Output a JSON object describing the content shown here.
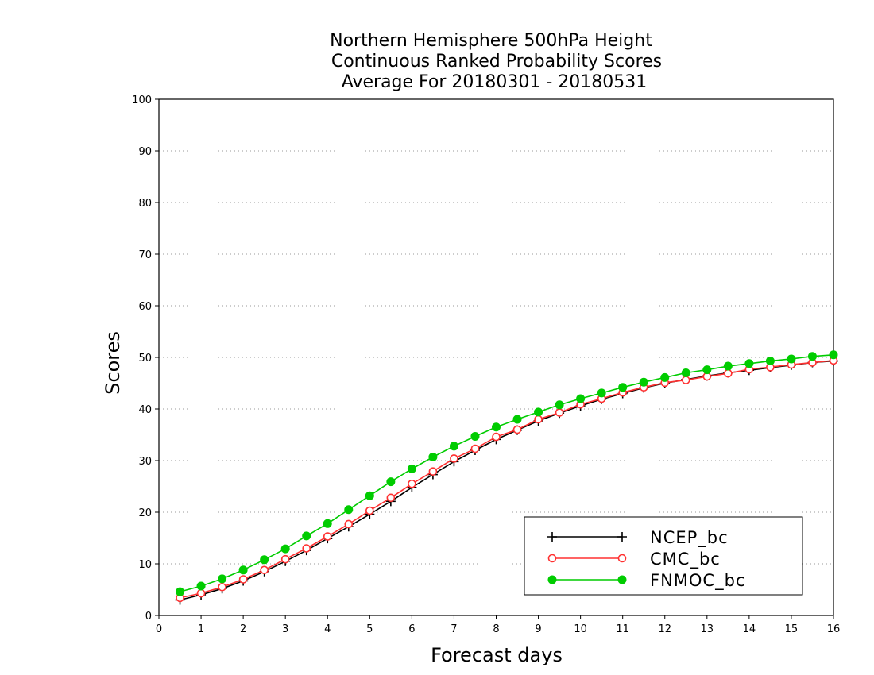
{
  "chart_data": {
    "type": "line",
    "title": [
      "Northern Hemisphere 500hPa Height",
      "Continuous Ranked Probability Scores",
      "Average For 20180301 - 20180531"
    ],
    "xlabel": "Forecast days",
    "ylabel": "Scores",
    "xlim": [
      0,
      16
    ],
    "ylim": [
      0,
      100
    ],
    "xticks": [
      "0",
      "1",
      "2",
      "3",
      "4",
      "5",
      "6",
      "7",
      "8",
      "9",
      "10",
      "11",
      "12",
      "13",
      "14",
      "15",
      "16"
    ],
    "yticks": [
      "0",
      "10",
      "20",
      "30",
      "40",
      "50",
      "60",
      "70",
      "80",
      "90",
      "100"
    ],
    "grid": "horizontal dotted",
    "legend_position": "bottom-right",
    "x": [
      0.5,
      1.0,
      1.5,
      2.0,
      2.5,
      3.0,
      3.5,
      4.0,
      4.5,
      5.0,
      5.5,
      6.0,
      6.5,
      7.0,
      7.5,
      8.0,
      8.5,
      9.0,
      9.5,
      10.0,
      10.5,
      11.0,
      11.5,
      12.0,
      12.5,
      13.0,
      13.5,
      14.0,
      14.5,
      15.0,
      15.5,
      16.0
    ],
    "series": [
      {
        "name": "NCEP_bc",
        "color": "#000000",
        "marker": "plus",
        "values": [
          3.0,
          4.0,
          5.2,
          6.7,
          8.5,
          10.5,
          12.6,
          14.9,
          17.2,
          19.6,
          22.1,
          24.8,
          27.3,
          29.8,
          32.0,
          34.1,
          35.9,
          37.7,
          39.2,
          40.6,
          41.9,
          43.0,
          44.1,
          45.0,
          45.7,
          46.4,
          47.0,
          47.5,
          48.0,
          48.5,
          49.0,
          49.3
        ]
      },
      {
        "name": "CMC_bc",
        "color": "#ff3030",
        "marker": "open-circle",
        "values": [
          3.4,
          4.3,
          5.5,
          7.0,
          8.8,
          10.9,
          13.0,
          15.3,
          17.7,
          20.3,
          22.8,
          25.5,
          27.9,
          30.4,
          32.3,
          34.6,
          36.0,
          38.0,
          39.3,
          40.9,
          42.0,
          43.2,
          44.2,
          45.1,
          45.6,
          46.3,
          46.9,
          47.7,
          48.1,
          48.6,
          49.0,
          49.4
        ]
      },
      {
        "name": "FNMOC_bc",
        "color": "#00cc00",
        "marker": "filled-circle",
        "values": [
          4.6,
          5.7,
          7.1,
          8.8,
          10.8,
          12.9,
          15.4,
          17.8,
          20.5,
          23.2,
          25.9,
          28.4,
          30.7,
          32.8,
          34.7,
          36.5,
          38.0,
          39.4,
          40.8,
          42.0,
          43.1,
          44.2,
          45.2,
          46.1,
          47.0,
          47.6,
          48.3,
          48.8,
          49.3,
          49.7,
          50.2,
          50.5
        ]
      }
    ]
  }
}
